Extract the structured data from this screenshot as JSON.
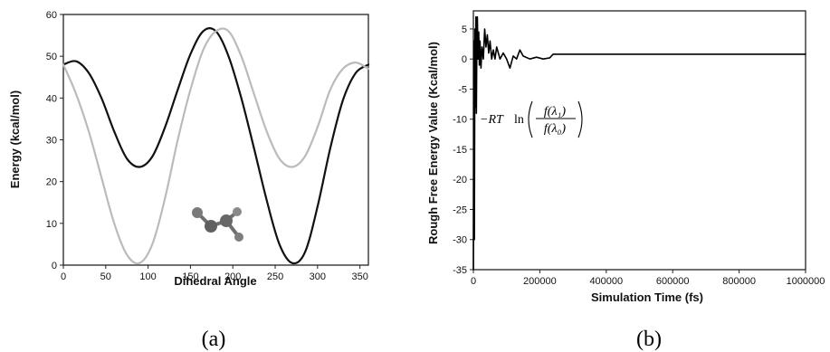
{
  "chart_data": [
    {
      "type": "line",
      "panel_caption": "(a)",
      "xlabel": "Dihedral Angle",
      "ylabel": "Energy (kcal/mol)",
      "xlim": [
        0,
        360
      ],
      "ylim": [
        0,
        60
      ],
      "xticks": [
        0,
        50,
        100,
        150,
        200,
        250,
        300,
        350
      ],
      "yticks": [
        0,
        10,
        20,
        30,
        40,
        50,
        60
      ],
      "grid": false,
      "series": [
        {
          "color": "#111111",
          "x": [
            0,
            15,
            30,
            45,
            60,
            75,
            90,
            105,
            120,
            135,
            150,
            165,
            180,
            195,
            210,
            225,
            240,
            255,
            270,
            285,
            300,
            315,
            330,
            345,
            360
          ],
          "y": [
            48,
            48.8,
            46,
            40,
            32,
            25.5,
            23.5,
            26,
            33,
            42,
            50.5,
            56,
            56,
            50,
            40,
            28,
            15.5,
            5,
            0.5,
            3,
            14,
            28,
            39.5,
            46,
            48
          ]
        },
        {
          "color": "#bbbbbb",
          "x": [
            0,
            15,
            30,
            45,
            60,
            75,
            90,
            105,
            120,
            135,
            150,
            165,
            180,
            195,
            210,
            225,
            240,
            255,
            270,
            285,
            300,
            315,
            330,
            345,
            360
          ],
          "y": [
            48,
            41,
            32,
            21,
            10,
            2.5,
            0.5,
            5,
            16,
            30,
            42,
            51.5,
            56,
            56,
            50,
            41,
            32,
            25.5,
            23.5,
            26,
            33,
            42,
            47,
            48.5,
            47
          ]
        }
      ],
      "inset_icon": "molecule-icon"
    },
    {
      "type": "line",
      "panel_caption": "(b)",
      "xlabel": "Simulation Time (fs)",
      "ylabel": "Rough Free Energy Value (Kcal/mol)",
      "xlim": [
        0,
        1000000
      ],
      "ylim": [
        -35,
        8
      ],
      "xticks": [
        0,
        200000,
        400000,
        600000,
        800000,
        1000000
      ],
      "yticks": [
        5,
        0,
        -5,
        -10,
        -15,
        -20,
        -25,
        -30,
        -35
      ],
      "grid": false,
      "annotation": {
        "prefix": "−RT",
        "func": "ln",
        "numerator": "f(λ₁)",
        "denominator": "f(λ₀)"
      },
      "series": [
        {
          "color": "#000000",
          "x": [
            0,
            1500,
            3000,
            4500,
            6000,
            7500,
            9000,
            10500,
            12000,
            14000,
            16000,
            18000,
            20000,
            23000,
            26000,
            30000,
            34000,
            38000,
            42000,
            46000,
            50000,
            55000,
            60000,
            65000,
            70000,
            80000,
            90000,
            100000,
            110000,
            120000,
            130000,
            140000,
            150000,
            170000,
            190000,
            210000,
            230000,
            240000,
            250000,
            300000,
            400000,
            500000,
            600000,
            700000,
            800000,
            900000,
            1000000
          ],
          "y": [
            -35,
            3,
            -30,
            5,
            -8,
            7,
            -9,
            4,
            7,
            0,
            4.5,
            -1,
            3,
            -1.5,
            2,
            0,
            5,
            2,
            4,
            1,
            3,
            0,
            1.5,
            0,
            2,
            0,
            1,
            0,
            -1.5,
            0.5,
            0,
            1.5,
            0.5,
            0,
            0.3,
            0,
            0.2,
            0.8,
            0.8,
            0.8,
            0.8,
            0.8,
            0.8,
            0.8,
            0.8,
            0.8,
            0.8
          ]
        }
      ]
    }
  ]
}
